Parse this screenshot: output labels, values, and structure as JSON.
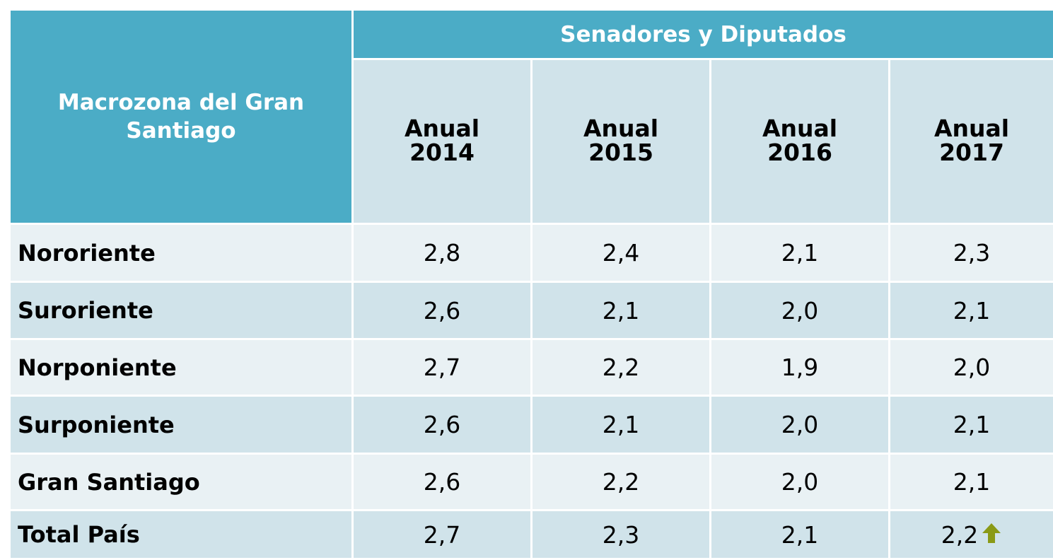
{
  "table": {
    "corner": "Macrozona del Gran Santiago",
    "group_header": "Senadores y Diputados",
    "columns": [
      "Anual 2014",
      "Anual 2015",
      "Anual 2016",
      "Anual 2017"
    ],
    "rows": [
      [
        "Nororiente",
        "2,8",
        "2,4",
        "2,1",
        "2,3"
      ],
      [
        "Suroriente",
        "2,6",
        "2,1",
        "2,0",
        "2,1"
      ],
      [
        "Norponiente",
        "2,7",
        "2,2",
        "1,9",
        "2,0"
      ],
      [
        "Surponiente",
        "2,6",
        "2,1",
        "2,0",
        "2,1"
      ],
      [
        "Gran Santiago",
        "2,6",
        "2,2",
        "2,0",
        "2,1"
      ],
      [
        "Total País",
        "2,7",
        "2,3",
        "2,1",
        "2,2"
      ]
    ]
  }
}
